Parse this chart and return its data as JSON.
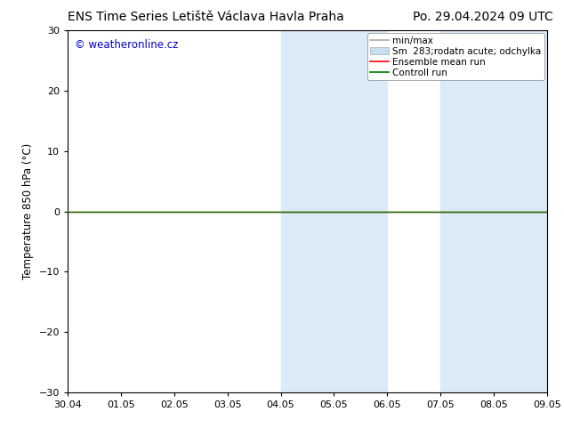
{
  "title_left": "ENS Time Series Letiště Václava Havla Praha",
  "title_right": "Po. 29.04.2024 09 UTC",
  "ylabel": "Temperature 850 hPa (°C)",
  "watermark": "© weatheronline.cz",
  "watermark_color": "#0000cc",
  "ylim": [
    -30,
    30
  ],
  "yticks": [
    -30,
    -20,
    -10,
    0,
    10,
    20,
    30
  ],
  "xtick_labels": [
    "30.04",
    "01.05",
    "02.05",
    "03.05",
    "04.05",
    "05.05",
    "06.05",
    "07.05",
    "08.05",
    "09.05"
  ],
  "background_color": "#ffffff",
  "plot_bg_color": "#ffffff",
  "shaded_regions": [
    {
      "xstart": 4,
      "xend": 6,
      "color": "#daeaf7"
    },
    {
      "xstart": 7,
      "xend": 9,
      "color": "#daeaf7"
    }
  ],
  "green_line_y": 0,
  "red_line_y": 0,
  "legend_labels": [
    "min/max",
    "Sm  283;rodatn acute; odchylka",
    "Ensemble mean run",
    "Controll run"
  ],
  "legend_colors": [
    "#aaaaaa",
    "#c8dff0",
    "#ff0000",
    "#007700"
  ],
  "title_fontsize": 10,
  "axis_label_fontsize": 8.5,
  "tick_fontsize": 8,
  "watermark_fontsize": 8.5,
  "legend_fontsize": 7.5
}
